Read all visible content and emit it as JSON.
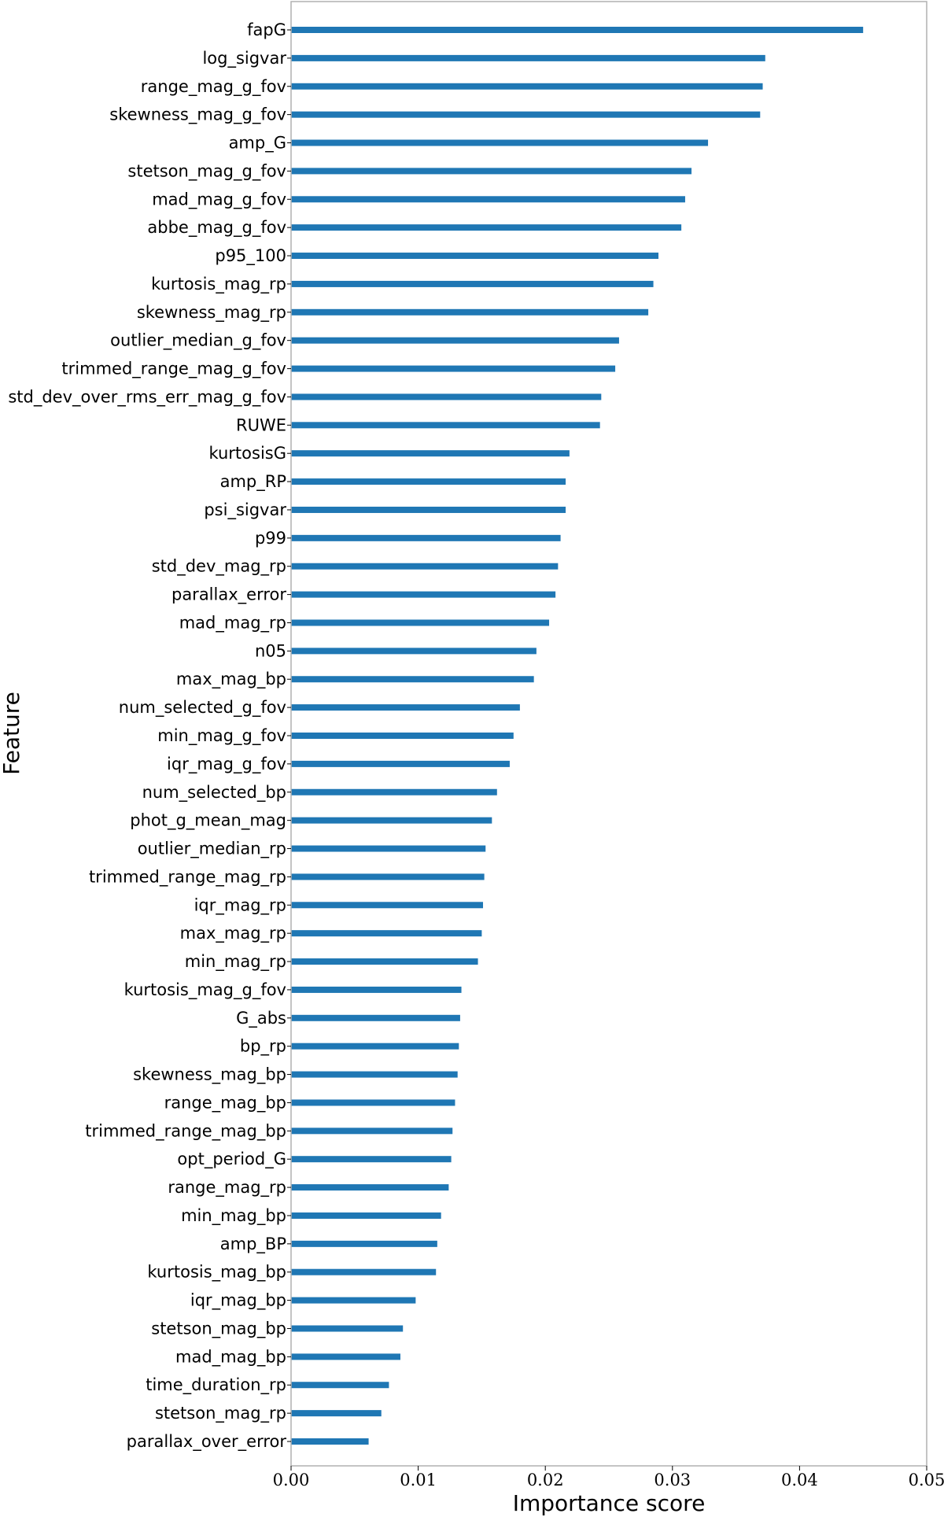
{
  "chart_data": {
    "type": "bar",
    "orientation": "horizontal",
    "xlabel": "Importance score",
    "ylabel": "Feature",
    "xlim": [
      0,
      0.05
    ],
    "xticks": [
      0,
      0.01,
      0.02,
      0.03,
      0.04,
      0.05
    ],
    "xtick_labels": [
      "0.00",
      "0.01",
      "0.02",
      "0.03",
      "0.04",
      "0.05"
    ],
    "grid": false,
    "legend": "none",
    "bar_color": "#1f77b4",
    "categories": [
      "fapG",
      "log_sigvar",
      "range_mag_g_fov",
      "skewness_mag_g_fov",
      "amp_G",
      "stetson_mag_g_fov",
      "mad_mag_g_fov",
      "abbe_mag_g_fov",
      "p95_100",
      "kurtosis_mag_rp",
      "skewness_mag_rp",
      "outlier_median_g_fov",
      "trimmed_range_mag_g_fov",
      "std_dev_over_rms_err_mag_g_fov",
      "RUWE",
      "kurtosisG",
      "amp_RP",
      "psi_sigvar",
      "p99",
      "std_dev_mag_rp",
      "parallax_error",
      "mad_mag_rp",
      "n05",
      "max_mag_bp",
      "num_selected_g_fov",
      "min_mag_g_fov",
      "iqr_mag_g_fov",
      "num_selected_bp",
      "phot_g_mean_mag",
      "outlier_median_rp",
      "trimmed_range_mag_rp",
      "iqr_mag_rp",
      "max_mag_rp",
      "min_mag_rp",
      "kurtosis_mag_g_fov",
      "G_abs",
      "bp_rp",
      "skewness_mag_bp",
      "range_mag_bp",
      "trimmed_range_mag_bp",
      "opt_period_G",
      "range_mag_rp",
      "min_mag_bp",
      "amp_BP",
      "kurtosis_mag_bp",
      "iqr_mag_bp",
      "stetson_mag_bp",
      "mad_mag_bp",
      "time_duration_rp",
      "stetson_mag_rp",
      "parallax_over_error"
    ],
    "values": [
      0.045,
      0.0373,
      0.0371,
      0.0369,
      0.0328,
      0.0315,
      0.031,
      0.0307,
      0.0289,
      0.0285,
      0.0281,
      0.0258,
      0.0255,
      0.0244,
      0.0243,
      0.0219,
      0.0216,
      0.0216,
      0.0212,
      0.021,
      0.0208,
      0.0203,
      0.0193,
      0.0191,
      0.018,
      0.0175,
      0.0172,
      0.0162,
      0.0158,
      0.0153,
      0.0152,
      0.0151,
      0.015,
      0.0147,
      0.0134,
      0.0133,
      0.0132,
      0.0131,
      0.0129,
      0.0127,
      0.0126,
      0.0124,
      0.0118,
      0.0115,
      0.0114,
      0.0098,
      0.0088,
      0.0086,
      0.0077,
      0.0071,
      0.0061
    ]
  }
}
